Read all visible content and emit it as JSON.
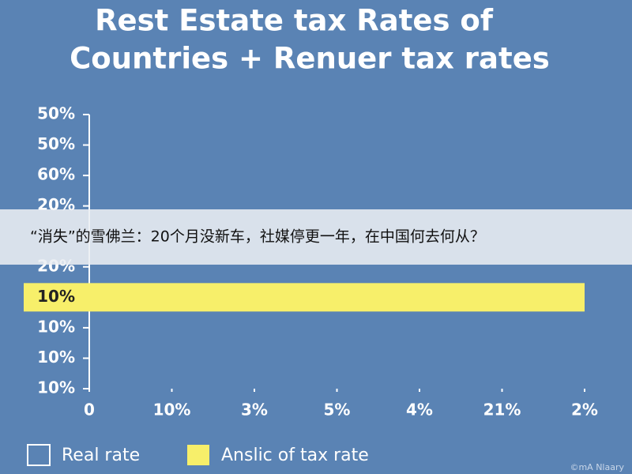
{
  "chart_data": {
    "type": "hbar",
    "title": [
      "Rest Estate tax Rates of",
      "Countries + Renuer tax rates"
    ],
    "categories": [
      "50%",
      "50%",
      "60%",
      "20%",
      null,
      "20%",
      "10%",
      "10%",
      "10%",
      "10%"
    ],
    "xlim": [
      0,
      6
    ],
    "xticks": [
      {
        "value": 0,
        "label": "0"
      },
      {
        "value": 1,
        "label": "10%"
      },
      {
        "value": 2,
        "label": "3%"
      },
      {
        "value": 3,
        "label": "5%"
      },
      {
        "value": 4,
        "label": "4%"
      },
      {
        "value": 5,
        "label": "21%"
      },
      {
        "value": 6,
        "label": "2%"
      }
    ],
    "series": [
      {
        "name": "Real rate",
        "color": "#ffffff",
        "values": [
          null,
          null,
          null,
          null,
          null,
          null,
          null,
          null,
          null,
          null
        ]
      },
      {
        "name": "Anslic of tax rate",
        "color": "#f7ef6a",
        "values": [
          null,
          null,
          null,
          null,
          null,
          null,
          6,
          null,
          null,
          null
        ]
      }
    ]
  },
  "overlay_banner": "“消失”的雪佛兰：20个月没新车，社媒停更一年，在中国何去何从？",
  "watermark": "©mA Nlaary"
}
